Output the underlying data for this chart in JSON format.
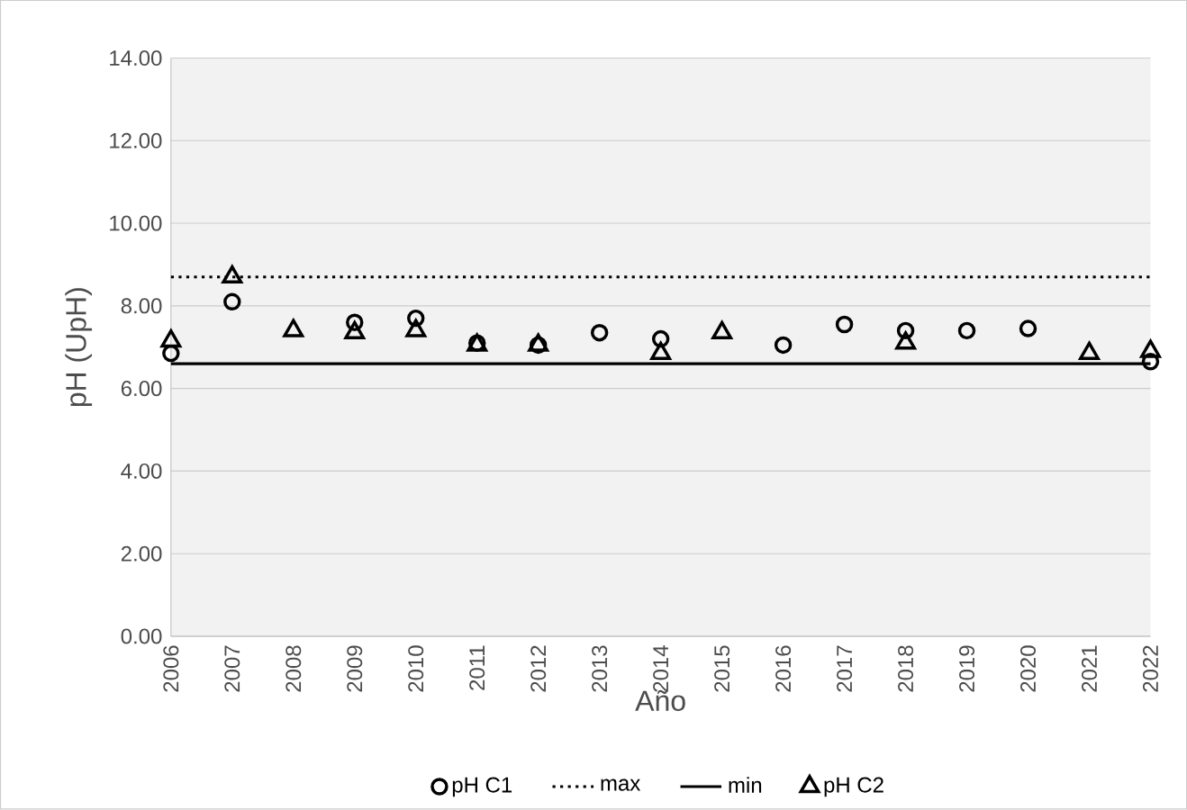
{
  "chart_data": {
    "type": "scatter",
    "xlabel": "Año",
    "ylabel": "pH (UpH)",
    "categories": [
      "2006",
      "2007",
      "2008",
      "2009",
      "2010",
      "2011",
      "2012",
      "2013",
      "2014",
      "2015",
      "2016",
      "2017",
      "2018",
      "2019",
      "2020",
      "2021",
      "2022"
    ],
    "series": [
      {
        "name": "pH C1",
        "color": "#000000",
        "marker": "circle",
        "values": [
          6.85,
          8.1,
          null,
          7.6,
          7.7,
          7.1,
          7.05,
          7.35,
          7.2,
          null,
          7.05,
          7.55,
          7.4,
          7.4,
          7.45,
          null,
          6.65
        ]
      },
      {
        "name": "pH C2",
        "color": "#000000",
        "marker": "triangle",
        "values": [
          7.15,
          8.7,
          7.4,
          7.35,
          7.4,
          7.05,
          7.05,
          null,
          6.85,
          7.35,
          null,
          null,
          7.1,
          null,
          null,
          6.85,
          6.9
        ]
      }
    ],
    "ref_lines": [
      {
        "axis": "y",
        "value": 8.7,
        "label": "max",
        "color": "#000000",
        "line_style": "dotted"
      },
      {
        "axis": "y",
        "value": 6.6,
        "label": "min",
        "color": "#000000",
        "line_style": "solid"
      }
    ],
    "ylim": [
      0,
      14
    ],
    "yticks": [
      {
        "value": 0,
        "label": "0.00"
      },
      {
        "value": 2,
        "label": "2.00"
      },
      {
        "value": 4,
        "label": "4.00"
      },
      {
        "value": 6,
        "label": "6.00"
      },
      {
        "value": 8,
        "label": "8.00"
      },
      {
        "value": 10,
        "label": "10.00"
      },
      {
        "value": 12,
        "label": "12.00"
      },
      {
        "value": 14,
        "label": "14.00"
      }
    ],
    "grid": "y",
    "legend": "bottom"
  }
}
